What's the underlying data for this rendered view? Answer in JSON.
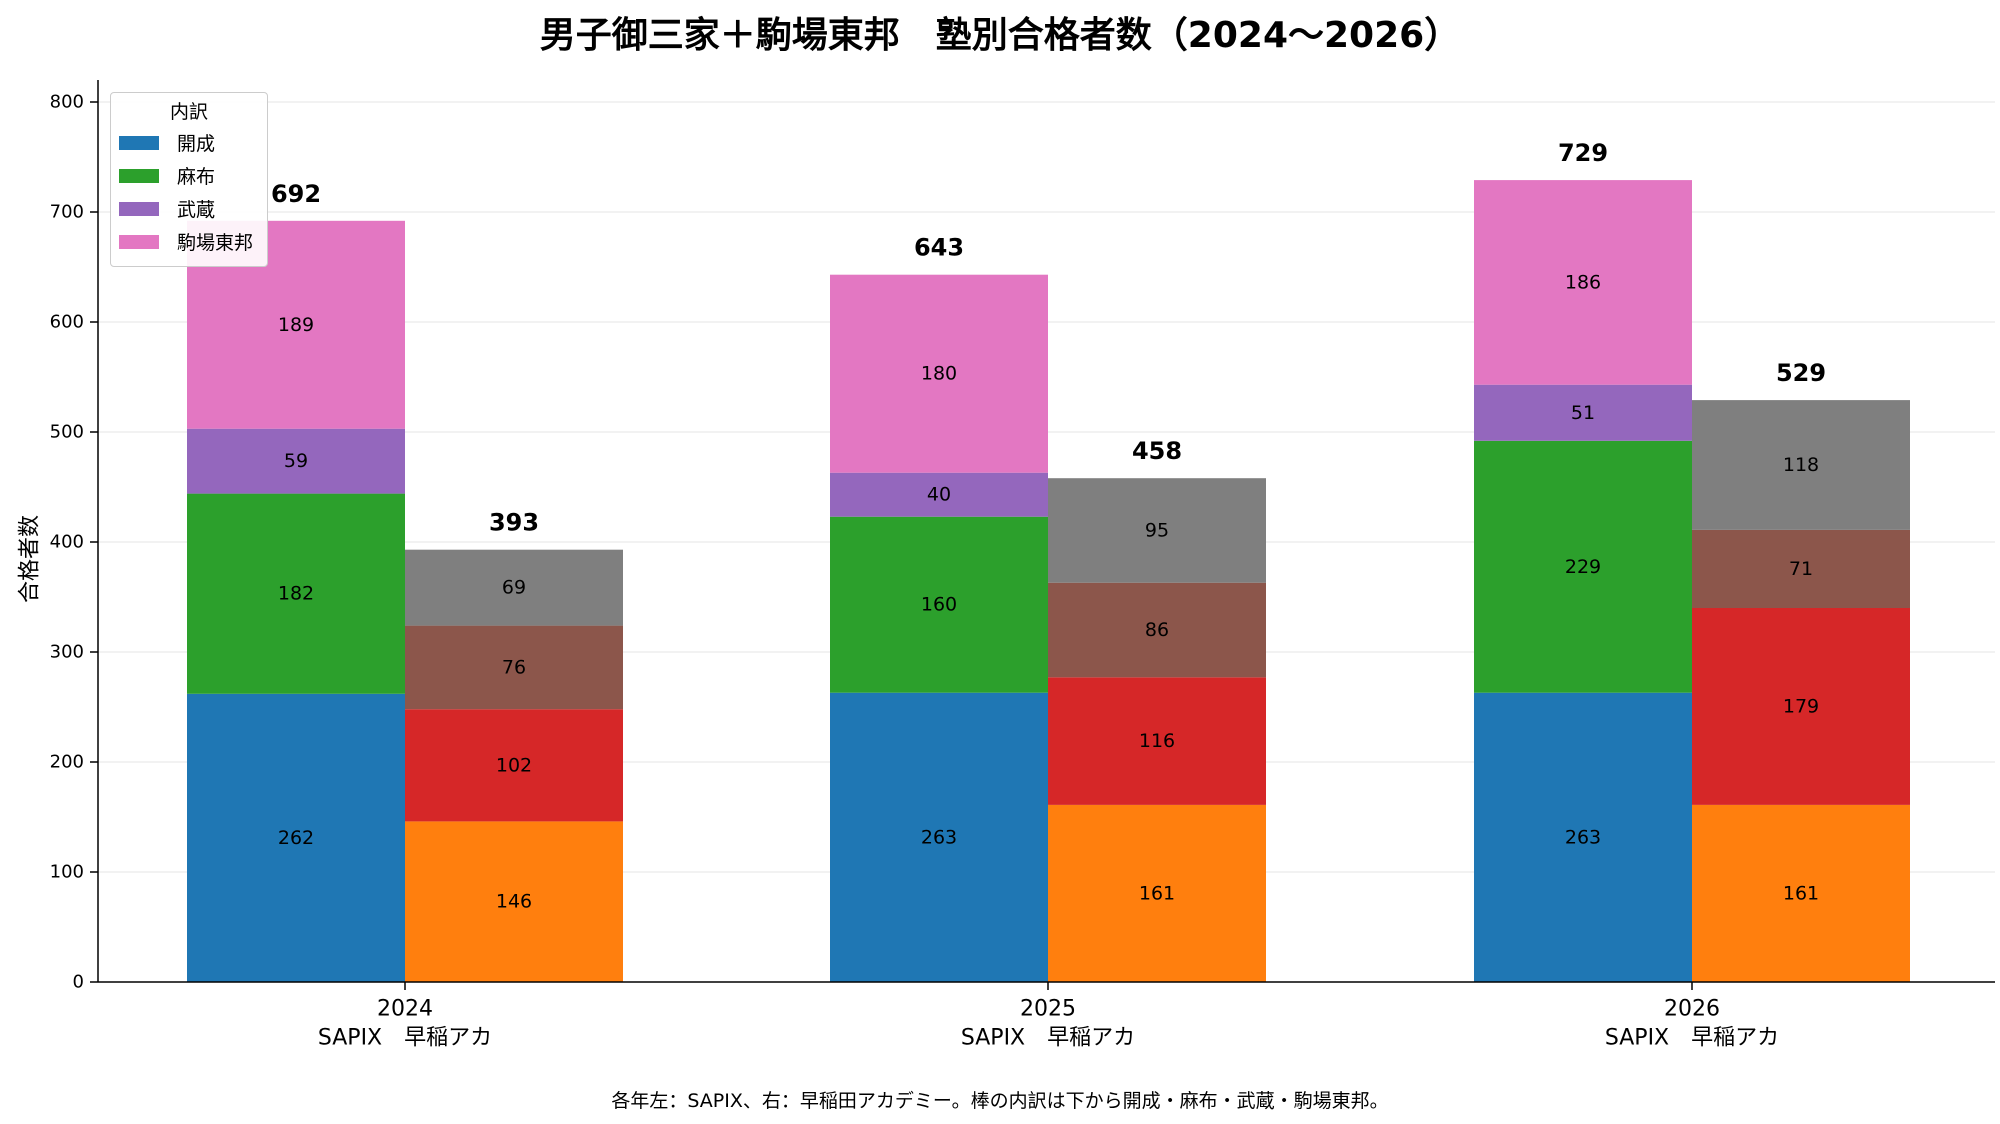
{
  "chart_data": {
    "type": "bar",
    "stacked": true,
    "grouped": true,
    "title": "男子御三家＋駒場東邦　塾別合格者数（2024〜2026）",
    "ylabel": "合格者数",
    "ylim": [
      0,
      820
    ],
    "yticks": [
      0,
      100,
      200,
      300,
      400,
      500,
      600,
      700,
      800
    ],
    "grid": "horizontal",
    "legend": {
      "title": "内訳",
      "placement": "top-left",
      "entries": [
        {
          "label": "開成",
          "color": "#1f77b4"
        },
        {
          "label": "麻布",
          "color": "#2ca02c"
        },
        {
          "label": "武蔵",
          "color": "#9467bd"
        },
        {
          "label": "駒場東邦",
          "color": "#e377c2"
        }
      ]
    },
    "categories": [
      "2024",
      "2025",
      "2026"
    ],
    "bar_labels": [
      "SAPIX",
      "早稲アカ"
    ],
    "groups": [
      {
        "category": "2024",
        "bars": [
          {
            "label": "SAPIX",
            "total": 692,
            "segments": [
              {
                "school": "開成",
                "value": 262,
                "color": "#1f77b4"
              },
              {
                "school": "麻布",
                "value": 182,
                "color": "#2ca02c"
              },
              {
                "school": "武蔵",
                "value": 59,
                "color": "#9467bd"
              },
              {
                "school": "駒場東邦",
                "value": 189,
                "color": "#e377c2"
              }
            ]
          },
          {
            "label": "早稲アカ",
            "total": 393,
            "segments": [
              {
                "school": "開成",
                "value": 146,
                "color": "#ff7f0e"
              },
              {
                "school": "麻布",
                "value": 102,
                "color": "#d62728"
              },
              {
                "school": "武蔵",
                "value": 76,
                "color": "#8c564b"
              },
              {
                "school": "駒場東邦",
                "value": 69,
                "color": "#7f7f7f"
              }
            ]
          }
        ]
      },
      {
        "category": "2025",
        "bars": [
          {
            "label": "SAPIX",
            "total": 643,
            "segments": [
              {
                "school": "開成",
                "value": 263,
                "color": "#1f77b4"
              },
              {
                "school": "麻布",
                "value": 160,
                "color": "#2ca02c"
              },
              {
                "school": "武蔵",
                "value": 40,
                "color": "#9467bd"
              },
              {
                "school": "駒場東邦",
                "value": 180,
                "color": "#e377c2"
              }
            ]
          },
          {
            "label": "早稲アカ",
            "total": 458,
            "segments": [
              {
                "school": "開成",
                "value": 161,
                "color": "#ff7f0e"
              },
              {
                "school": "麻布",
                "value": 116,
                "color": "#d62728"
              },
              {
                "school": "武蔵",
                "value": 86,
                "color": "#8c564b"
              },
              {
                "school": "駒場東邦",
                "value": 95,
                "color": "#7f7f7f"
              }
            ]
          }
        ]
      },
      {
        "category": "2026",
        "bars": [
          {
            "label": "SAPIX",
            "total": 729,
            "segments": [
              {
                "school": "開成",
                "value": 263,
                "color": "#1f77b4"
              },
              {
                "school": "麻布",
                "value": 229,
                "color": "#2ca02c"
              },
              {
                "school": "武蔵",
                "value": 51,
                "color": "#9467bd"
              },
              {
                "school": "駒場東邦",
                "value": 186,
                "color": "#e377c2"
              }
            ]
          },
          {
            "label": "早稲アカ",
            "total": 529,
            "segments": [
              {
                "school": "開成",
                "value": 161,
                "color": "#ff7f0e"
              },
              {
                "school": "麻布",
                "value": 179,
                "color": "#d62728"
              },
              {
                "school": "武蔵",
                "value": 71,
                "color": "#8c564b"
              },
              {
                "school": "駒場東邦",
                "value": 118,
                "color": "#7f7f7f"
              }
            ]
          }
        ]
      }
    ],
    "footnote": "各年左：SAPIX、右：早稲田アカデミー。棒の内訳は下から開成・麻布・武蔵・駒場東邦。"
  }
}
